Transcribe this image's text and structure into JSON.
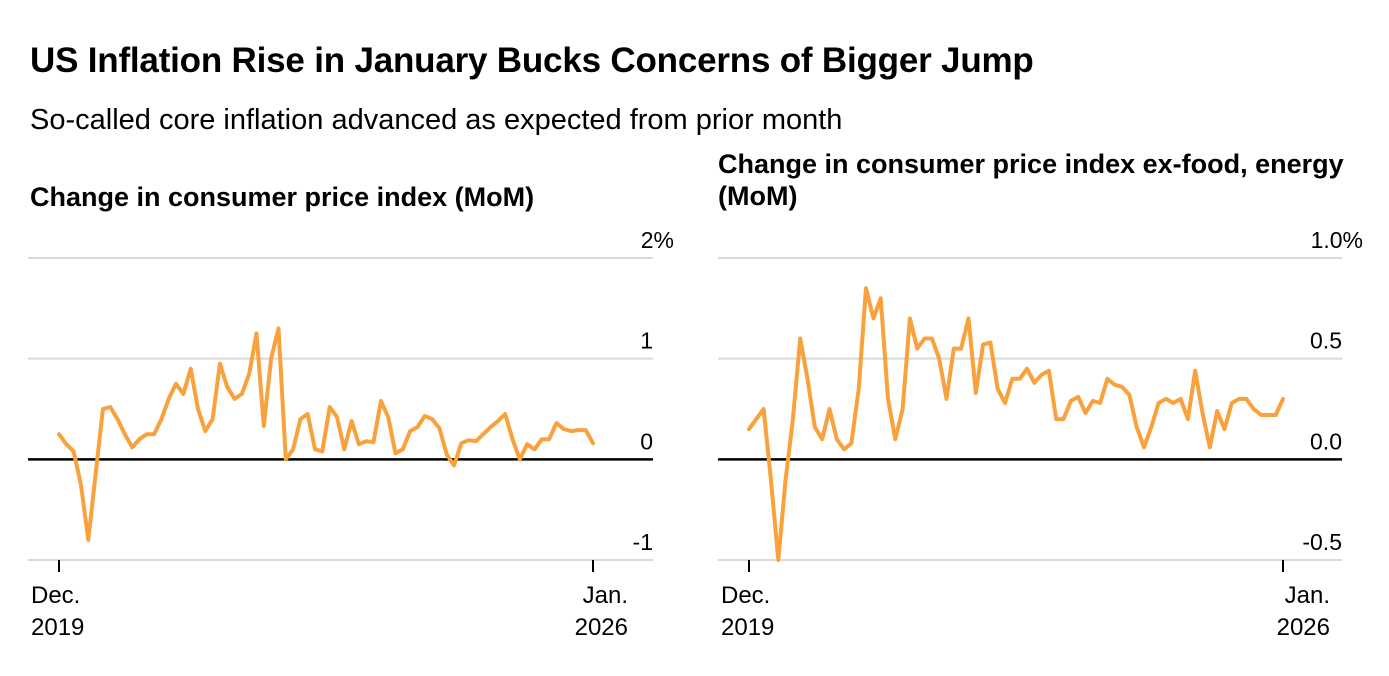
{
  "header": {
    "title": "US Inflation Rise in January Bucks Concerns of Bigger Jump",
    "subtitle": "So-called core inflation advanced as expected from prior month"
  },
  "colors": {
    "accent_line": "#F9A13C",
    "gridline": "#D9D9D9",
    "zero_line": "#000000",
    "tick": "#000000",
    "text": "#000000",
    "background": "#FFFFFF"
  },
  "chart_data": [
    {
      "type": "line",
      "title": "Change in consumer price index (MoM)",
      "series_name": "CPI month-over-month change",
      "frequency": "monthly",
      "x_start": "Dec. 2019",
      "x_end": "Jan. 2026",
      "x_tick_labels": [
        {
          "line1": "Dec.",
          "line2": "2019",
          "align": "left"
        },
        {
          "line1": "Jan.",
          "line2": "2026",
          "align": "right"
        }
      ],
      "ylim": [
        -1,
        2
      ],
      "y_ticks": [
        {
          "value": 2,
          "label": "2%"
        },
        {
          "value": 1,
          "label": "1"
        },
        {
          "value": 0,
          "label": "0"
        },
        {
          "value": -1,
          "label": "-1"
        }
      ],
      "grid": true,
      "legend": "none",
      "values": [
        0.25,
        0.15,
        0.08,
        -0.25,
        -0.8,
        -0.15,
        0.5,
        0.52,
        0.4,
        0.25,
        0.12,
        0.2,
        0.25,
        0.25,
        0.4,
        0.6,
        0.75,
        0.65,
        0.9,
        0.5,
        0.28,
        0.4,
        0.95,
        0.72,
        0.6,
        0.65,
        0.85,
        1.25,
        0.33,
        1.0,
        1.3,
        0.0,
        0.1,
        0.4,
        0.45,
        0.1,
        0.08,
        0.52,
        0.42,
        0.1,
        0.38,
        0.15,
        0.18,
        0.17,
        0.58,
        0.42,
        0.06,
        0.1,
        0.28,
        0.32,
        0.43,
        0.4,
        0.31,
        0.05,
        -0.06,
        0.16,
        0.19,
        0.18,
        0.25,
        0.32,
        0.38,
        0.45,
        0.2,
        0.0,
        0.15,
        0.1,
        0.2,
        0.2,
        0.36,
        0.3,
        0.28,
        0.29,
        0.29,
        0.16
      ]
    },
    {
      "type": "line",
      "title": "Change in consumer price index ex-food, energy (MoM)",
      "series_name": "Core CPI month-over-month change",
      "frequency": "monthly",
      "x_start": "Dec. 2019",
      "x_end": "Jan. 2026",
      "x_tick_labels": [
        {
          "line1": "Dec.",
          "line2": "2019",
          "align": "left"
        },
        {
          "line1": "Jan.",
          "line2": "2026",
          "align": "right"
        }
      ],
      "ylim": [
        -0.5,
        1.0
      ],
      "y_ticks": [
        {
          "value": 1.0,
          "label": "1.0%"
        },
        {
          "value": 0.5,
          "label": "0.5"
        },
        {
          "value": 0.0,
          "label": "0.0"
        },
        {
          "value": -0.5,
          "label": "-0.5"
        }
      ],
      "grid": true,
      "legend": "none",
      "values": [
        0.15,
        0.2,
        0.25,
        -0.1,
        -0.5,
        -0.1,
        0.2,
        0.6,
        0.4,
        0.16,
        0.1,
        0.25,
        0.1,
        0.05,
        0.08,
        0.35,
        0.85,
        0.7,
        0.8,
        0.3,
        0.1,
        0.25,
        0.7,
        0.55,
        0.6,
        0.6,
        0.5,
        0.3,
        0.55,
        0.55,
        0.7,
        0.33,
        0.57,
        0.58,
        0.35,
        0.28,
        0.4,
        0.4,
        0.45,
        0.38,
        0.42,
        0.44,
        0.2,
        0.2,
        0.29,
        0.31,
        0.23,
        0.29,
        0.28,
        0.4,
        0.37,
        0.36,
        0.32,
        0.16,
        0.06,
        0.16,
        0.28,
        0.3,
        0.28,
        0.3,
        0.2,
        0.44,
        0.23,
        0.06,
        0.24,
        0.15,
        0.28,
        0.3,
        0.3,
        0.25,
        0.22,
        0.22,
        0.22,
        0.3
      ]
    }
  ]
}
